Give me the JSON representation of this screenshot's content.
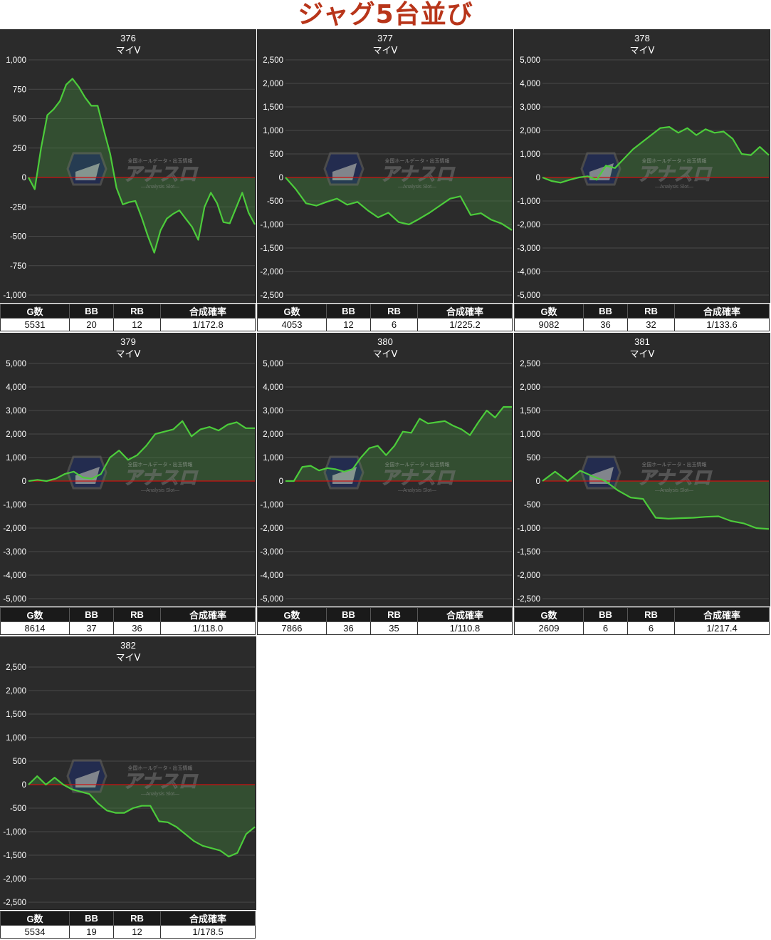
{
  "page_title": "ジャグ5台並び",
  "watermark": {
    "brand": "アナスロ",
    "sub": "—Analysis Slot—",
    "tagline": "全国ホールデータ・出玉情報"
  },
  "stats_headers": [
    "G数",
    "BB",
    "RB",
    "合成確率"
  ],
  "colors": {
    "plot_bg": "#2b2b2b",
    "line": "#4ccc3b",
    "zero_line": "#cc1111",
    "grid": "#4a4a4a",
    "title_accent": "#b8351a"
  },
  "chart_data": [
    {
      "type": "area",
      "title": "376",
      "subtitle": "マイV",
      "ylim": [
        -1000,
        1000
      ],
      "yticks": [
        1000,
        750,
        500,
        250,
        0,
        -250,
        -500,
        -750,
        -1000
      ],
      "x": [
        0,
        5,
        10,
        15,
        20,
        25,
        30,
        35,
        40,
        45,
        50,
        55,
        60,
        65,
        70,
        75,
        80,
        85,
        90,
        95,
        100
      ],
      "y": [
        0,
        -100,
        200,
        530,
        620,
        790,
        840,
        700,
        610,
        610,
        200,
        -90,
        -230,
        -200,
        -400,
        -640,
        -350,
        -280,
        -420,
        -530,
        -130
      ],
      "stats": {
        "games": "5531",
        "bb": "20",
        "rb": "12",
        "prob": "1/172.8"
      }
    },
    {
      "type": "area",
      "title": "377",
      "subtitle": "マイV",
      "ylim": [
        -2500,
        2500
      ],
      "yticks": [
        2500,
        2000,
        1500,
        1000,
        500,
        0,
        -500,
        -1000,
        -1500,
        -2000,
        -2500
      ],
      "x": [],
      "y": [],
      "stats": {
        "games": "4053",
        "bb": "12",
        "rb": "6",
        "prob": "1/225.2"
      }
    },
    {
      "type": "area",
      "title": "378",
      "subtitle": "マイV",
      "ylim": [
        -5000,
        5000
      ],
      "yticks": [
        5000,
        4000,
        3000,
        2000,
        1000,
        0,
        -1000,
        -2000,
        -3000,
        -4000,
        -5000
      ],
      "x": [],
      "y": [],
      "stats": {
        "games": "9082",
        "bb": "36",
        "rb": "32",
        "prob": "1/133.6"
      }
    },
    {
      "type": "area",
      "title": "379",
      "subtitle": "マイV",
      "ylim": [
        -5000,
        5000
      ],
      "yticks": [
        5000,
        4000,
        3000,
        2000,
        1000,
        0,
        -1000,
        -2000,
        -3000,
        -4000,
        -5000
      ],
      "x": [],
      "y": [],
      "stats": {
        "games": "8614",
        "bb": "37",
        "rb": "36",
        "prob": "1/118.0"
      }
    },
    {
      "type": "area",
      "title": "380",
      "subtitle": "マイV",
      "ylim": [
        -5000,
        5000
      ],
      "yticks": [
        5000,
        4000,
        3000,
        2000,
        1000,
        0,
        -1000,
        -2000,
        -3000,
        -4000,
        -5000
      ],
      "x": [],
      "y": [],
      "stats": {
        "games": "7866",
        "bb": "36",
        "rb": "35",
        "prob": "1/110.8"
      }
    },
    {
      "type": "area",
      "title": "381",
      "subtitle": "マイV",
      "ylim": [
        -2500,
        2500
      ],
      "yticks": [
        2500,
        2000,
        1500,
        1000,
        500,
        0,
        -500,
        -1000,
        -1500,
        -2000,
        -2500
      ],
      "x": [],
      "y": [],
      "stats": {
        "games": "2609",
        "bb": "6",
        "rb": "6",
        "prob": "1/217.4"
      }
    },
    {
      "type": "area",
      "title": "382",
      "subtitle": "マイV",
      "ylim": [
        -2500,
        2500
      ],
      "yticks": [
        2500,
        2000,
        1500,
        1000,
        500,
        0,
        -500,
        -1000,
        -1500,
        -2000,
        -2500
      ],
      "x": [],
      "y": [],
      "stats": {
        "games": "5534",
        "bb": "19",
        "rb": "12",
        "prob": "1/178.5"
      }
    }
  ],
  "series_values": {
    "376": [
      0,
      -100,
      250,
      530,
      580,
      650,
      790,
      840,
      770,
      680,
      610,
      610,
      400,
      200,
      -90,
      -230,
      -210,
      -200,
      -340,
      -500,
      -640,
      -450,
      -350,
      -310,
      -280,
      -350,
      -420,
      -530,
      -250,
      -130,
      -220,
      -380,
      -390,
      -260,
      -130,
      -300,
      -400
    ],
    "377": [
      0,
      -250,
      -550,
      -600,
      -520,
      -450,
      -580,
      -520,
      -700,
      -850,
      -750,
      -950,
      -1000,
      -880,
      -750,
      -600,
      -450,
      -400,
      -800,
      -760,
      -900,
      -980,
      -1120
    ],
    "378": [
      0,
      -150,
      -220,
      -100,
      0,
      50,
      -100,
      500,
      400,
      800,
      1200,
      1500,
      1800,
      2100,
      2150,
      1900,
      2100,
      1800,
      2050,
      1900,
      1950,
      1650,
      1000,
      950,
      1300,
      950
    ],
    "379": [
      0,
      50,
      0,
      100,
      300,
      400,
      150,
      100,
      300,
      1000,
      1300,
      900,
      1100,
      1500,
      2000,
      2100,
      2200,
      2550,
      1900,
      2200,
      2300,
      2150,
      2400,
      2500,
      2250,
      2250
    ],
    "380": [
      0,
      0,
      600,
      650,
      450,
      550,
      500,
      400,
      500,
      1000,
      1400,
      1500,
      1100,
      1500,
      2100,
      2050,
      2650,
      2450,
      2500,
      2550,
      2350,
      2200,
      1950,
      2500,
      3000,
      2700,
      3150,
      3150
    ],
    "381": [
      0,
      200,
      0,
      220,
      100,
      0,
      -200,
      -350,
      -380,
      -780,
      -800,
      -790,
      -780,
      -760,
      -750,
      -850,
      -900,
      -1000,
      -1020
    ],
    "382": [
      0,
      180,
      0,
      150,
      0,
      -100,
      -150,
      -200,
      -400,
      -550,
      -600,
      -600,
      -500,
      -450,
      -450,
      -780,
      -800,
      -900,
      -1050,
      -1200,
      -1300,
      -1350,
      -1400,
      -1530,
      -1450,
      -1050,
      -900
    ]
  }
}
